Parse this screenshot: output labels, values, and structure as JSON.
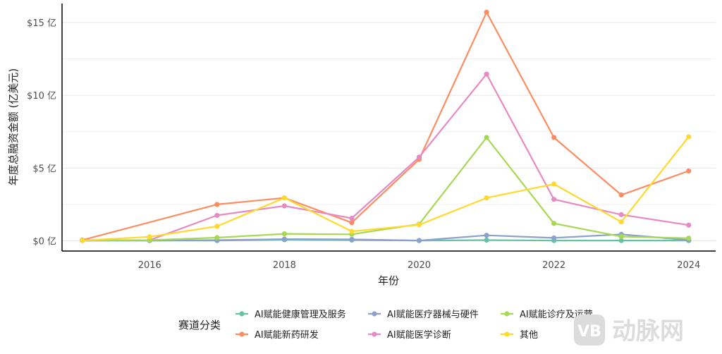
{
  "chart_data": {
    "type": "line",
    "title": "",
    "xlabel": "年份",
    "ylabel": "年度总融资金额 (亿美元)",
    "x": [
      2015,
      2016,
      2017,
      2018,
      2019,
      2020,
      2021,
      2022,
      2023,
      2024
    ],
    "x_ticks": [
      2016,
      2018,
      2020,
      2022,
      2024
    ],
    "x_tick_labels": [
      "2016",
      "2018",
      "2020",
      "2022",
      "2024"
    ],
    "y_ticks": [
      0,
      5,
      10,
      15
    ],
    "y_tick_labels": [
      "$0 亿",
      "$5 亿",
      "$10 亿",
      "$15 亿"
    ],
    "xlim": [
      2014.7,
      2024.4
    ],
    "ylim": [
      -0.7,
      16.3
    ],
    "grid": true,
    "legend": {
      "title": "赛道分类",
      "placement": "bottom"
    },
    "series": [
      {
        "name": "AI赋能健康管理及服务",
        "color": "#66c2a5",
        "points": [
          [
            2015,
            0.02
          ],
          [
            2016,
            0.02
          ],
          [
            2017,
            0.02
          ],
          [
            2018,
            0.08
          ],
          [
            2019,
            0.05
          ],
          [
            2020,
            0.02
          ],
          [
            2021,
            0.05
          ],
          [
            2022,
            0.02
          ],
          [
            2023,
            0.02
          ],
          [
            2024,
            0.02
          ]
        ]
      },
      {
        "name": "AI赋能新药研发",
        "color": "#fc8d62",
        "points": [
          [
            2015,
            0.05
          ],
          [
            2017,
            2.5
          ],
          [
            2018,
            2.95
          ],
          [
            2019,
            1.25
          ],
          [
            2020,
            5.6
          ],
          [
            2021,
            15.7
          ],
          [
            2022,
            7.1
          ],
          [
            2023,
            3.15
          ],
          [
            2024,
            4.8
          ]
        ]
      },
      {
        "name": "AI赋能医疗器械与硬件",
        "color": "#8da0cb",
        "points": [
          [
            2015,
            0.02
          ],
          [
            2016,
            0.02
          ],
          [
            2017,
            0.05
          ],
          [
            2018,
            0.12
          ],
          [
            2019,
            0.1
          ],
          [
            2020,
            0.02
          ],
          [
            2021,
            0.38
          ],
          [
            2022,
            0.2
          ],
          [
            2023,
            0.45
          ],
          [
            2024,
            0.05
          ]
        ]
      },
      {
        "name": "AI赋能医学诊断",
        "color": "#e78ac3",
        "points": [
          [
            2015,
            0.02
          ],
          [
            2016,
            0.05
          ],
          [
            2017,
            1.75
          ],
          [
            2018,
            2.4
          ],
          [
            2019,
            1.55
          ],
          [
            2020,
            5.75
          ],
          [
            2021,
            11.45
          ],
          [
            2022,
            2.85
          ],
          [
            2023,
            1.8
          ],
          [
            2024,
            1.08
          ]
        ]
      },
      {
        "name": "AI赋能诊疗及运营",
        "color": "#a6d854",
        "points": [
          [
            2015,
            0.02
          ],
          [
            2016,
            0.05
          ],
          [
            2017,
            0.22
          ],
          [
            2018,
            0.48
          ],
          [
            2019,
            0.45
          ],
          [
            2020,
            1.15
          ],
          [
            2021,
            7.1
          ],
          [
            2022,
            1.2
          ],
          [
            2023,
            0.3
          ],
          [
            2024,
            0.18
          ]
        ]
      },
      {
        "name": "其他",
        "color": "#ffd92f",
        "points": [
          [
            2015,
            0.02
          ],
          [
            2016,
            0.28
          ],
          [
            2017,
            1.0
          ],
          [
            2018,
            2.95
          ],
          [
            2019,
            0.65
          ],
          [
            2020,
            1.1
          ],
          [
            2021,
            2.95
          ],
          [
            2022,
            3.9
          ],
          [
            2023,
            1.3
          ],
          [
            2024,
            7.15
          ]
        ]
      }
    ],
    "legend_order": [
      0,
      2,
      4,
      1,
      3,
      5
    ]
  },
  "watermark": {
    "logo_icon": "vb-logo-icon",
    "text": "动脉网"
  }
}
